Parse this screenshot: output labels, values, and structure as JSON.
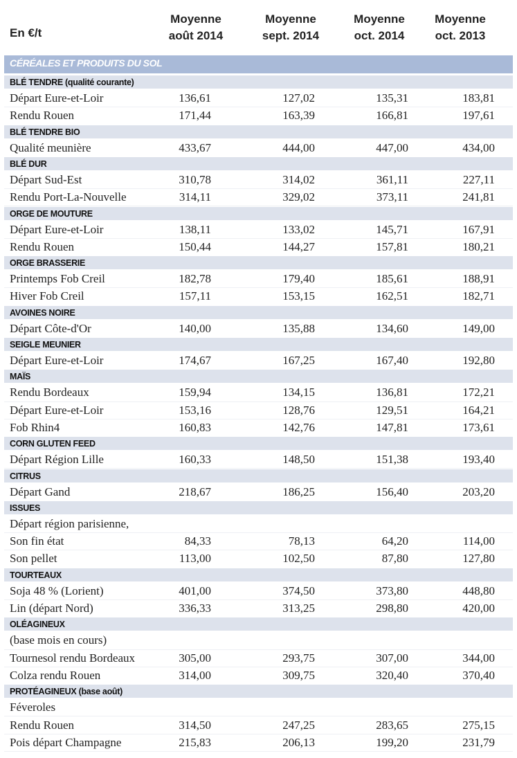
{
  "header": {
    "unit": "En €/t",
    "columns": [
      [
        "Moyenne",
        "août 2014"
      ],
      [
        "Moyenne",
        "sept. 2014"
      ],
      [
        "Moyenne",
        "oct. 2014"
      ],
      [
        "Moyenne",
        "oct. 2013"
      ]
    ]
  },
  "section": "CÉRÉALES ET PRODUITS DU SOL",
  "groups": [
    {
      "title": "BLÉ TENDRE (qualité courante)",
      "rows": [
        [
          "Départ Eure-et-Loir",
          "136,61",
          "127,02",
          "135,31",
          "183,81"
        ],
        [
          "Rendu Rouen",
          "171,44",
          "163,39",
          "166,81",
          "197,61"
        ]
      ]
    },
    {
      "title": "BLÉ TENDRE BIO",
      "rows": [
        [
          "Qualité meunière",
          "433,67",
          "444,00",
          "447,00",
          "434,00"
        ]
      ]
    },
    {
      "title": "BLÉ DUR",
      "rows": [
        [
          "Départ Sud-Est",
          "310,78",
          "314,02",
          "361,11",
          "227,11"
        ],
        [
          "Rendu Port-La-Nouvelle",
          "314,11",
          "329,02",
          "373,11",
          "241,81"
        ]
      ]
    },
    {
      "title": "ORGE DE MOUTURE",
      "rows": [
        [
          "Départ Eure-et-Loir",
          "138,11",
          "133,02",
          "145,71",
          "167,91"
        ],
        [
          "Rendu Rouen",
          "150,44",
          "144,27",
          "157,81",
          "180,21"
        ]
      ]
    },
    {
      "title": "ORGE BRASSERIE",
      "rows": [
        [
          "Printemps Fob Creil",
          "182,78",
          "179,40",
          "185,61",
          "188,91"
        ],
        [
          "Hiver Fob Creil",
          "157,11",
          "153,15",
          "162,51",
          "182,71"
        ]
      ]
    },
    {
      "title": "AVOINES NOIRE",
      "rows": [
        [
          "Départ Côte-d'Or",
          "140,00",
          "135,88",
          "134,60",
          "149,00"
        ]
      ]
    },
    {
      "title": "SEIGLE MEUNIER",
      "rows": [
        [
          "Départ Eure-et-Loir",
          "174,67",
          "167,25",
          "167,40",
          "192,80"
        ]
      ]
    },
    {
      "title": "MAÏS",
      "rows": [
        [
          "Rendu Bordeaux",
          "159,94",
          "134,15",
          "136,81",
          "172,21"
        ],
        [
          "Départ Eure-et-Loir",
          "153,16",
          "128,76",
          "129,51",
          "164,21"
        ],
        [
          "Fob Rhin4",
          "160,83",
          "142,76",
          "147,81",
          "173,61"
        ]
      ]
    },
    {
      "title": "CORN GLUTEN FEED",
      "rows": [
        [
          "Départ Région Lille",
          "160,33",
          "148,50",
          "151,38",
          "193,40"
        ]
      ]
    },
    {
      "title": "CITRUS",
      "rows": [
        [
          "Départ Gand",
          "218,67",
          "186,25",
          "156,40",
          "203,20"
        ]
      ]
    },
    {
      "title": "ISSUES",
      "rows": [
        [
          "Départ région parisienne,"
        ],
        [
          "Son fin état",
          "84,33",
          "78,13",
          "64,20",
          "114,00"
        ],
        [
          "Son pellet",
          "113,00",
          "102,50",
          "87,80",
          "127,80"
        ]
      ]
    },
    {
      "title": "TOURTEAUX",
      "rows": [
        [
          "Soja 48 % (Lorient)",
          "401,00",
          "374,50",
          "373,80",
          "448,80"
        ],
        [
          "Lin (départ Nord)",
          "336,33",
          "313,25",
          "298,80",
          "420,00"
        ]
      ]
    },
    {
      "title": "OLÉAGINEUX",
      "rows": [
        [
          "(base mois en cours)"
        ],
        [
          "Tournesol rendu Bordeaux",
          "305,00",
          "293,75",
          "307,00",
          "344,00"
        ],
        [
          "Colza rendu Rouen",
          "314,00",
          "309,75",
          "320,40",
          "370,40"
        ]
      ]
    },
    {
      "title": "PROTÉAGINEUX (base août)",
      "rows": [
        [
          "Féveroles"
        ],
        [
          "Rendu Rouen",
          "314,50",
          "247,25",
          "283,65",
          "275,15"
        ],
        [
          "Pois départ Champagne",
          "215,83",
          "206,13",
          "199,20",
          "231,79"
        ]
      ]
    }
  ]
}
